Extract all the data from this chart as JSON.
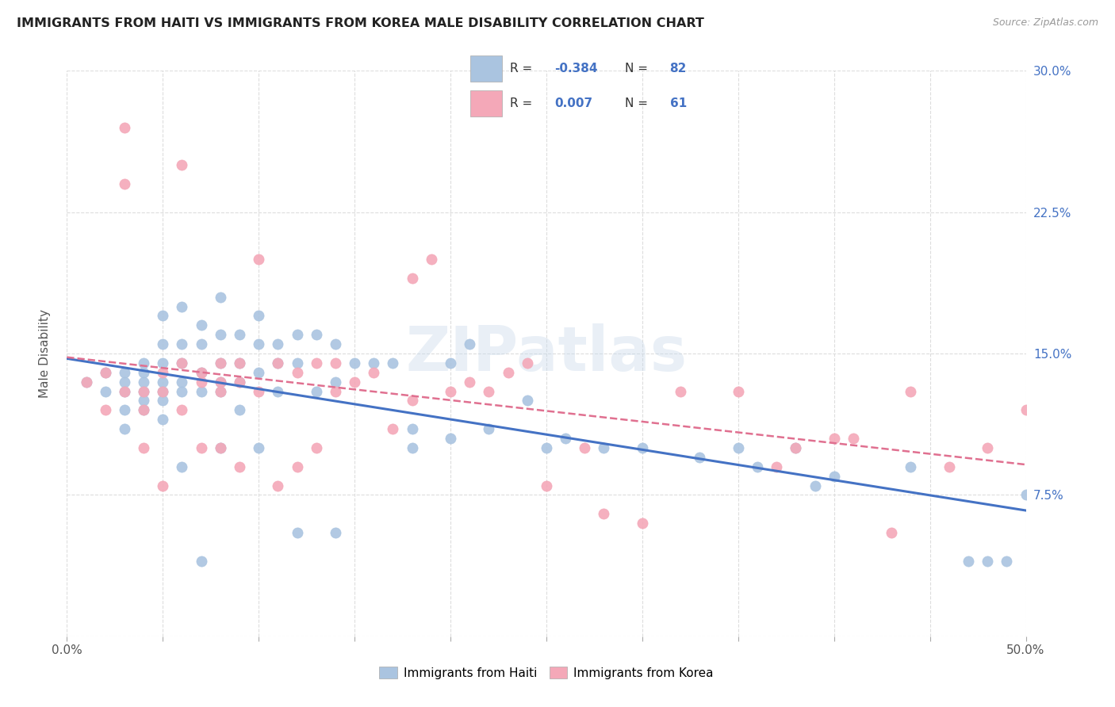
{
  "title": "IMMIGRANTS FROM HAITI VS IMMIGRANTS FROM KOREA MALE DISABILITY CORRELATION CHART",
  "source": "Source: ZipAtlas.com",
  "ylabel": "Male Disability",
  "xlim": [
    0.0,
    0.5
  ],
  "ylim": [
    0.0,
    0.3
  ],
  "xticks": [
    0.0,
    0.05,
    0.1,
    0.15,
    0.2,
    0.25,
    0.3,
    0.35,
    0.4,
    0.45,
    0.5
  ],
  "xtick_labels_show": [
    "0.0%",
    "",
    "",
    "",
    "",
    "",
    "",
    "",
    "",
    "",
    "50.0%"
  ],
  "yticks": [
    0.0,
    0.075,
    0.15,
    0.225,
    0.3
  ],
  "ytick_labels": [
    "",
    "7.5%",
    "15.0%",
    "22.5%",
    "30.0%"
  ],
  "haiti_color": "#aac4e0",
  "korea_color": "#f4a8b8",
  "haiti_line_color": "#4472c4",
  "korea_line_color": "#e07090",
  "legend_value_color": "#4472c4",
  "legend_label_color": "#333333",
  "watermark": "ZIPatlas",
  "haiti_x": [
    0.01,
    0.02,
    0.02,
    0.03,
    0.03,
    0.03,
    0.03,
    0.03,
    0.04,
    0.04,
    0.04,
    0.04,
    0.04,
    0.04,
    0.05,
    0.05,
    0.05,
    0.05,
    0.05,
    0.05,
    0.05,
    0.06,
    0.06,
    0.06,
    0.06,
    0.06,
    0.06,
    0.07,
    0.07,
    0.07,
    0.07,
    0.07,
    0.08,
    0.08,
    0.08,
    0.08,
    0.08,
    0.08,
    0.09,
    0.09,
    0.09,
    0.09,
    0.1,
    0.1,
    0.1,
    0.1,
    0.11,
    0.11,
    0.11,
    0.12,
    0.12,
    0.12,
    0.13,
    0.13,
    0.14,
    0.14,
    0.14,
    0.15,
    0.16,
    0.17,
    0.18,
    0.18,
    0.2,
    0.2,
    0.21,
    0.22,
    0.24,
    0.25,
    0.26,
    0.28,
    0.3,
    0.33,
    0.35,
    0.36,
    0.38,
    0.39,
    0.4,
    0.44,
    0.47,
    0.48,
    0.49,
    0.5
  ],
  "haiti_y": [
    0.135,
    0.14,
    0.13,
    0.14,
    0.135,
    0.13,
    0.12,
    0.11,
    0.145,
    0.14,
    0.135,
    0.13,
    0.125,
    0.12,
    0.17,
    0.155,
    0.145,
    0.135,
    0.13,
    0.125,
    0.115,
    0.175,
    0.155,
    0.145,
    0.135,
    0.13,
    0.09,
    0.165,
    0.155,
    0.14,
    0.13,
    0.04,
    0.18,
    0.16,
    0.145,
    0.135,
    0.13,
    0.1,
    0.16,
    0.145,
    0.135,
    0.12,
    0.17,
    0.155,
    0.14,
    0.1,
    0.155,
    0.145,
    0.13,
    0.16,
    0.145,
    0.055,
    0.16,
    0.13,
    0.155,
    0.135,
    0.055,
    0.145,
    0.145,
    0.145,
    0.11,
    0.1,
    0.145,
    0.105,
    0.155,
    0.11,
    0.125,
    0.1,
    0.105,
    0.1,
    0.1,
    0.095,
    0.1,
    0.09,
    0.1,
    0.08,
    0.085,
    0.09,
    0.04,
    0.04,
    0.04,
    0.075
  ],
  "korea_x": [
    0.01,
    0.02,
    0.02,
    0.03,
    0.03,
    0.03,
    0.04,
    0.04,
    0.04,
    0.05,
    0.05,
    0.05,
    0.06,
    0.06,
    0.06,
    0.07,
    0.07,
    0.07,
    0.08,
    0.08,
    0.08,
    0.08,
    0.09,
    0.09,
    0.09,
    0.1,
    0.1,
    0.11,
    0.11,
    0.12,
    0.12,
    0.13,
    0.13,
    0.14,
    0.14,
    0.15,
    0.16,
    0.17,
    0.18,
    0.18,
    0.19,
    0.2,
    0.21,
    0.22,
    0.23,
    0.24,
    0.25,
    0.27,
    0.28,
    0.3,
    0.32,
    0.35,
    0.37,
    0.38,
    0.4,
    0.41,
    0.43,
    0.44,
    0.46,
    0.48,
    0.5
  ],
  "korea_y": [
    0.135,
    0.14,
    0.12,
    0.27,
    0.24,
    0.13,
    0.13,
    0.12,
    0.1,
    0.14,
    0.13,
    0.08,
    0.25,
    0.145,
    0.12,
    0.14,
    0.135,
    0.1,
    0.145,
    0.135,
    0.13,
    0.1,
    0.145,
    0.135,
    0.09,
    0.2,
    0.13,
    0.145,
    0.08,
    0.14,
    0.09,
    0.145,
    0.1,
    0.145,
    0.13,
    0.135,
    0.14,
    0.11,
    0.19,
    0.125,
    0.2,
    0.13,
    0.135,
    0.13,
    0.14,
    0.145,
    0.08,
    0.1,
    0.065,
    0.06,
    0.13,
    0.13,
    0.09,
    0.1,
    0.105,
    0.105,
    0.055,
    0.13,
    0.09,
    0.1,
    0.12
  ]
}
